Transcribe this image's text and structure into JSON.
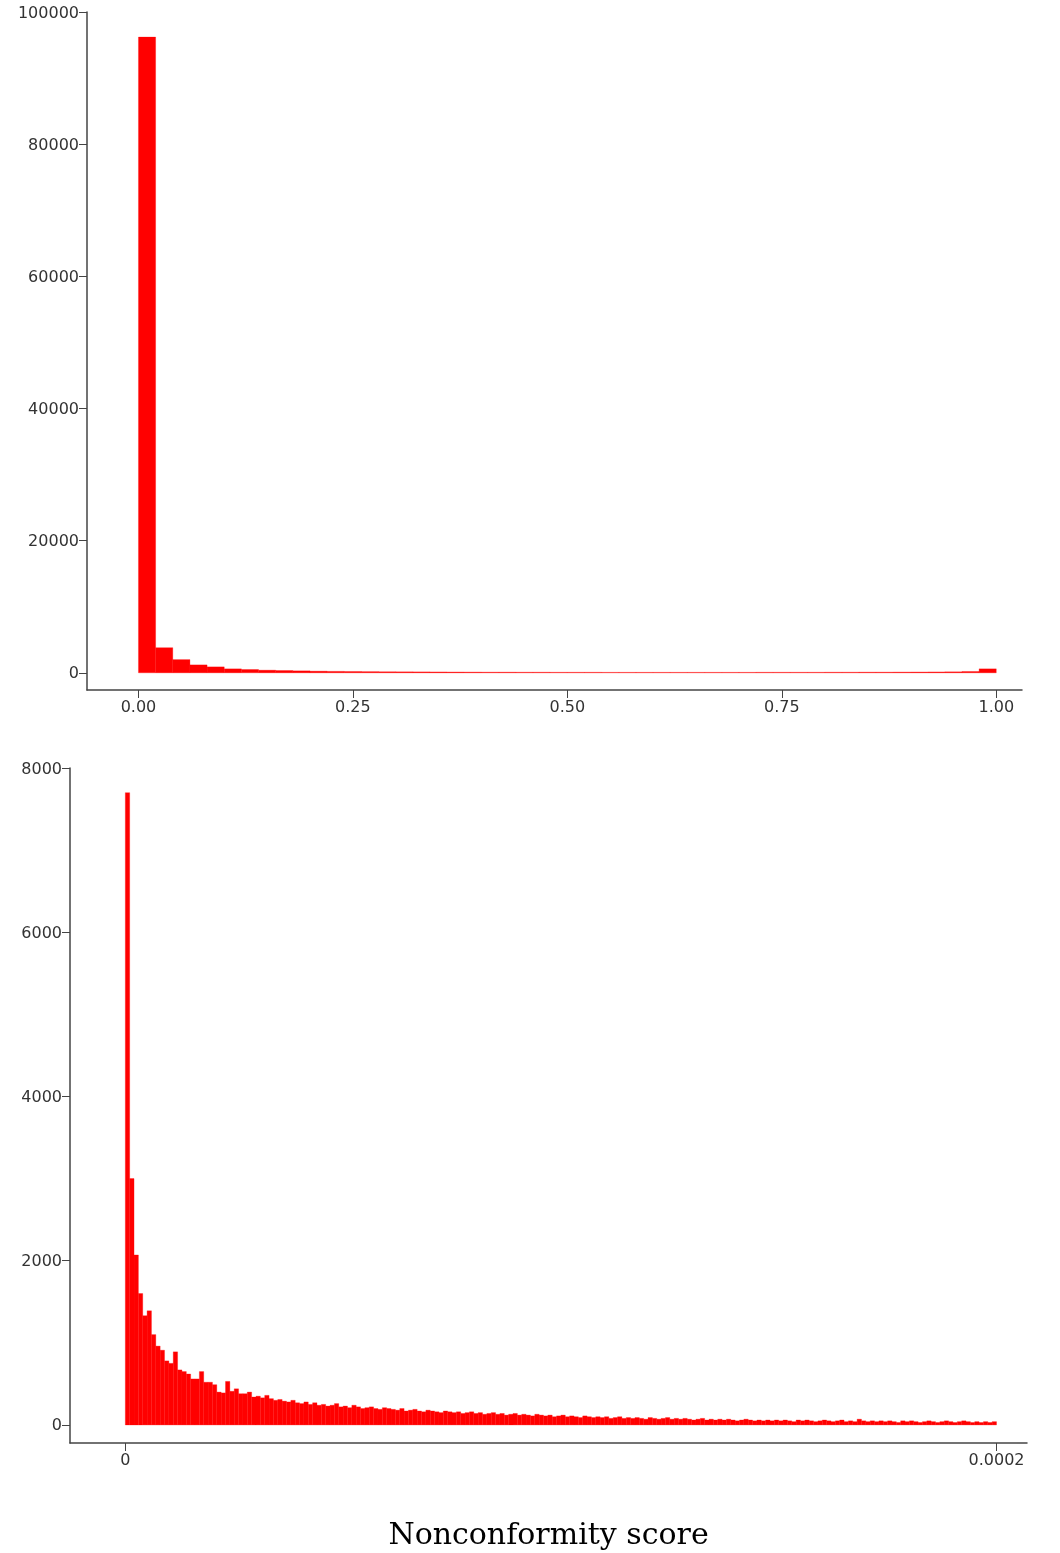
{
  "chart_data": [
    {
      "type": "histogram",
      "color": "#ff0000",
      "bins": [
        0,
        0.02,
        0.04,
        0.06,
        0.08,
        0.1,
        0.12,
        0.14,
        0.16,
        0.18,
        0.2,
        0.22,
        0.24,
        0.26,
        0.28,
        0.3,
        0.32,
        0.34,
        0.36,
        0.38,
        0.4,
        0.42,
        0.44,
        0.46,
        0.48,
        0.5,
        0.52,
        0.54,
        0.56,
        0.58,
        0.6,
        0.62,
        0.64,
        0.66,
        0.68,
        0.7,
        0.72,
        0.74,
        0.76,
        0.78,
        0.8,
        0.82,
        0.84,
        0.86,
        0.88,
        0.9,
        0.92,
        0.94,
        0.96,
        0.98,
        1.0
      ],
      "values": [
        96200,
        3800,
        2000,
        1200,
        900,
        600,
        500,
        400,
        350,
        300,
        250,
        220,
        200,
        180,
        160,
        150,
        140,
        130,
        120,
        110,
        100,
        100,
        90,
        90,
        80,
        80,
        80,
        70,
        70,
        70,
        70,
        70,
        70,
        70,
        70,
        70,
        80,
        80,
        80,
        80,
        90,
        90,
        100,
        100,
        110,
        120,
        130,
        150,
        200,
        600
      ],
      "xlim": [
        -0.06,
        1.03
      ],
      "ylim": [
        -2600,
        100000
      ],
      "xticks": [
        {
          "value": 0,
          "label": "0.00"
        },
        {
          "value": 0.25,
          "label": "0.25"
        },
        {
          "value": 0.5,
          "label": "0.50"
        },
        {
          "value": 0.75,
          "label": "0.75"
        },
        {
          "value": 1,
          "label": "1.00"
        }
      ],
      "yticks": [
        0,
        20000,
        40000,
        60000,
        80000,
        100000
      ]
    },
    {
      "type": "histogram",
      "color": "#ff0000",
      "xlabel": "Nonconformity score",
      "bins": [
        0,
        1e-06,
        2e-06,
        3e-06,
        4e-06,
        5e-06,
        6e-06,
        7e-06,
        8e-06,
        9e-06,
        1e-05,
        1.1e-05,
        1.2e-05,
        1.3e-05,
        1.4e-05,
        1.5e-05,
        1.6e-05,
        1.7e-05,
        1.8e-05,
        1.9e-05,
        2e-05,
        2.1e-05,
        2.2e-05,
        2.3e-05,
        2.4e-05,
        2.5e-05,
        2.6e-05,
        2.7e-05,
        2.8e-05,
        2.9e-05,
        3e-05,
        3.1e-05,
        3.2e-05,
        3.3e-05,
        3.4e-05,
        3.5e-05,
        3.6e-05,
        3.7e-05,
        3.8e-05,
        3.9e-05,
        4e-05,
        4.1e-05,
        4.2e-05,
        4.3e-05,
        4.4e-05,
        4.5e-05,
        4.6e-05,
        4.7e-05,
        4.8e-05,
        4.9e-05,
        5e-05,
        5.1e-05,
        5.2e-05,
        5.3e-05,
        5.4e-05,
        5.5e-05,
        5.6e-05,
        5.7e-05,
        5.8e-05,
        5.9e-05,
        6e-05,
        6.1e-05,
        6.2e-05,
        6.3e-05,
        6.4e-05,
        6.5e-05,
        6.6e-05,
        6.7e-05,
        6.8e-05,
        6.9e-05,
        7e-05,
        7.1e-05,
        7.2e-05,
        7.3e-05,
        7.4e-05,
        7.5e-05,
        7.6e-05,
        7.7e-05,
        7.8e-05,
        7.9e-05,
        8e-05,
        8.1e-05,
        8.2e-05,
        8.3e-05,
        8.4e-05,
        8.5e-05,
        8.6e-05,
        8.7e-05,
        8.8e-05,
        8.9e-05,
        9e-05,
        9.1e-05,
        9.2e-05,
        9.3e-05,
        9.4e-05,
        9.5e-05,
        9.6e-05,
        9.7e-05,
        9.8e-05,
        9.9e-05,
        0.0001,
        0.000101,
        0.000102,
        0.000103,
        0.000104,
        0.000105,
        0.000106,
        0.000107,
        0.000108,
        0.000109,
        0.00011,
        0.000111,
        0.000112,
        0.000113,
        0.000114,
        0.000115,
        0.000116,
        0.000117,
        0.000118,
        0.000119,
        0.00012,
        0.000121,
        0.000122,
        0.000123,
        0.000124,
        0.000125,
        0.000126,
        0.000127,
        0.000128,
        0.000129,
        0.00013,
        0.000131,
        0.000132,
        0.000133,
        0.000134,
        0.000135,
        0.000136,
        0.000137,
        0.000138,
        0.000139,
        0.00014,
        0.000141,
        0.000142,
        0.000143,
        0.000144,
        0.000145,
        0.000146,
        0.000147,
        0.000148,
        0.000149,
        0.00015,
        0.000151,
        0.000152,
        0.000153,
        0.000154,
        0.000155,
        0.000156,
        0.000157,
        0.000158,
        0.000159,
        0.00016,
        0.000161,
        0.000162,
        0.000163,
        0.000164,
        0.000165,
        0.000166,
        0.000167,
        0.000168,
        0.000169,
        0.00017,
        0.000171,
        0.000172,
        0.000173,
        0.000174,
        0.000175,
        0.000176,
        0.000177,
        0.000178,
        0.000179,
        0.00018,
        0.000181,
        0.000182,
        0.000183,
        0.000184,
        0.000185,
        0.000186,
        0.000187,
        0.000188,
        0.000189,
        0.00019,
        0.000191,
        0.000192,
        0.000193,
        0.000194,
        0.000195,
        0.000196,
        0.000197,
        0.000198,
        0.000199,
        0.0002
      ],
      "values": [
        7700,
        3000,
        2070,
        1600,
        1330,
        1390,
        1100,
        960,
        910,
        780,
        750,
        890,
        670,
        650,
        620,
        560,
        560,
        650,
        520,
        520,
        490,
        400,
        390,
        530,
        410,
        440,
        380,
        380,
        400,
        340,
        350,
        330,
        360,
        320,
        300,
        310,
        290,
        280,
        300,
        270,
        260,
        280,
        250,
        270,
        240,
        250,
        230,
        240,
        260,
        220,
        230,
        210,
        240,
        220,
        200,
        210,
        220,
        200,
        190,
        210,
        200,
        190,
        180,
        200,
        170,
        180,
        190,
        170,
        160,
        180,
        170,
        160,
        150,
        170,
        160,
        150,
        160,
        140,
        150,
        160,
        140,
        150,
        130,
        140,
        150,
        130,
        140,
        120,
        130,
        140,
        120,
        130,
        120,
        110,
        130,
        120,
        110,
        120,
        100,
        110,
        120,
        100,
        110,
        100,
        90,
        110,
        100,
        90,
        100,
        90,
        100,
        80,
        90,
        100,
        80,
        90,
        80,
        90,
        80,
        70,
        90,
        80,
        70,
        80,
        90,
        70,
        80,
        70,
        80,
        70,
        60,
        70,
        80,
        60,
        70,
        60,
        70,
        60,
        70,
        60,
        50,
        60,
        70,
        60,
        50,
        60,
        50,
        60,
        50,
        60,
        50,
        60,
        50,
        40,
        60,
        50,
        60,
        50,
        40,
        50,
        60,
        50,
        40,
        50,
        60,
        40,
        50,
        40,
        70,
        50,
        40,
        50,
        40,
        50,
        40,
        50,
        40,
        30,
        50,
        40,
        50,
        40,
        30,
        40,
        50,
        40,
        30,
        40,
        50,
        40,
        30,
        40,
        50,
        40,
        30,
        40,
        30,
        40,
        30,
        40
      ],
      "xlim": [
        -1.27e-05,
        0.000207
      ],
      "ylim": [
        -220,
        8000
      ],
      "xticks": [
        0,
        0.0002
      ],
      "yticks": [
        0,
        2000,
        4000,
        6000,
        8000
      ]
    }
  ]
}
